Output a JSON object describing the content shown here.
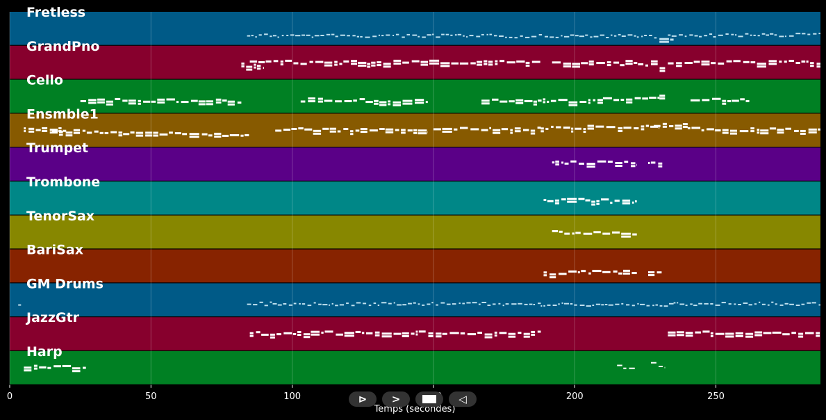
{
  "chart_data": {
    "type": "piano-roll",
    "xlabel": "Temps (secondes)",
    "xlim": [
      0,
      287
    ],
    "xticks": [
      0,
      50,
      100,
      150,
      200,
      250
    ],
    "grid": true,
    "tracks": [
      {
        "name": "Fretless",
        "color": "#005a87",
        "note_color": "#bfe0ee",
        "segments": [
          [
            84,
            229,
            0.7,
            0.72,
            0.6
          ],
          [
            230,
            235,
            0.8,
            0.8,
            1.0
          ],
          [
            233,
            287,
            0.7,
            0.68,
            0.6
          ]
        ]
      },
      {
        "name": "GrandPno",
        "color": "#87002d",
        "note_color": "#ffffff",
        "segments": [
          [
            82,
            90,
            0.55,
            0.6,
            1.0
          ],
          [
            85,
            188,
            0.47,
            0.47,
            1.0
          ],
          [
            192,
            218,
            0.45,
            0.52,
            1.0
          ],
          [
            218,
            226,
            0.45,
            0.62,
            1.0
          ],
          [
            227,
            232,
            0.45,
            0.7,
            1.0
          ],
          [
            233,
            287,
            0.47,
            0.47,
            1.0
          ]
        ]
      },
      {
        "name": "Cello",
        "color": "#008023",
        "note_color": "#ffffff",
        "segments": [
          [
            25,
            82,
            0.58,
            0.62,
            1.0
          ],
          [
            103,
            148,
            0.58,
            0.62,
            1.0
          ],
          [
            167,
            210,
            0.58,
            0.62,
            1.0
          ],
          [
            210,
            230,
            0.58,
            0.48,
            1.0
          ],
          [
            230,
            232,
            0.48,
            0.48,
            1.0
          ],
          [
            241,
            262,
            0.58,
            0.58,
            1.0
          ]
        ]
      },
      {
        "name": "Ensmble1",
        "color": "#875a00",
        "note_color": "#ffffff",
        "segments": [
          [
            5,
            20,
            0.46,
            0.44,
            1.0
          ],
          [
            15,
            85,
            0.5,
            0.64,
            1.0
          ],
          [
            94,
            148,
            0.44,
            0.5,
            1.0
          ],
          [
            150,
            188,
            0.44,
            0.44,
            1.0
          ],
          [
            188,
            230,
            0.4,
            0.36,
            1.0
          ],
          [
            228,
            240,
            0.3,
            0.3,
            1.0
          ],
          [
            240,
            287,
            0.44,
            0.48,
            1.0
          ]
        ]
      },
      {
        "name": "Trumpet",
        "color": "#5a0087",
        "note_color": "#ffffff",
        "segments": [
          [
            192,
            222,
            0.42,
            0.45,
            1.0
          ],
          [
            226,
            231,
            0.47,
            0.47,
            1.0
          ]
        ]
      },
      {
        "name": "Trombone",
        "color": "#008787",
        "note_color": "#ffffff",
        "segments": [
          [
            189,
            222,
            0.52,
            0.58,
            1.0
          ]
        ]
      },
      {
        "name": "TenorSax",
        "color": "#878700",
        "note_color": "#ffffff",
        "segments": [
          [
            192,
            222,
            0.48,
            0.52,
            1.0
          ]
        ]
      },
      {
        "name": "BariSax",
        "color": "#872300",
        "note_color": "#ffffff",
        "segments": [
          [
            189,
            222,
            0.68,
            0.65,
            1.0
          ],
          [
            226,
            231,
            0.7,
            0.7,
            1.0
          ]
        ]
      },
      {
        "name": "GM Drums",
        "color": "#005a87",
        "note_color": "#bfe0ee",
        "segments": [
          [
            3,
            4,
            0.65,
            0.65,
            0.6
          ],
          [
            84,
            188,
            0.6,
            0.6,
            0.6
          ],
          [
            188,
            235,
            0.62,
            0.62,
            0.6
          ],
          [
            235,
            287,
            0.6,
            0.6,
            0.6
          ]
        ]
      },
      {
        "name": "JazzGtr",
        "color": "#87002d",
        "note_color": "#ffffff",
        "segments": [
          [
            85,
            188,
            0.45,
            0.45,
            1.0
          ],
          [
            233,
            287,
            0.45,
            0.45,
            1.0
          ]
        ]
      },
      {
        "name": "Harp",
        "color": "#008023",
        "note_color": "#ffffff",
        "segments": [
          [
            5,
            27,
            0.43,
            0.45,
            1.0
          ],
          [
            215,
            222,
            0.45,
            0.45,
            0.8
          ],
          [
            227,
            232,
            0.33,
            0.45,
            0.8
          ]
        ]
      }
    ]
  },
  "controls": {
    "play_glyph": "⊳",
    "forward_glyph": ">",
    "stop_glyph": "",
    "back_glyph": "◁"
  }
}
